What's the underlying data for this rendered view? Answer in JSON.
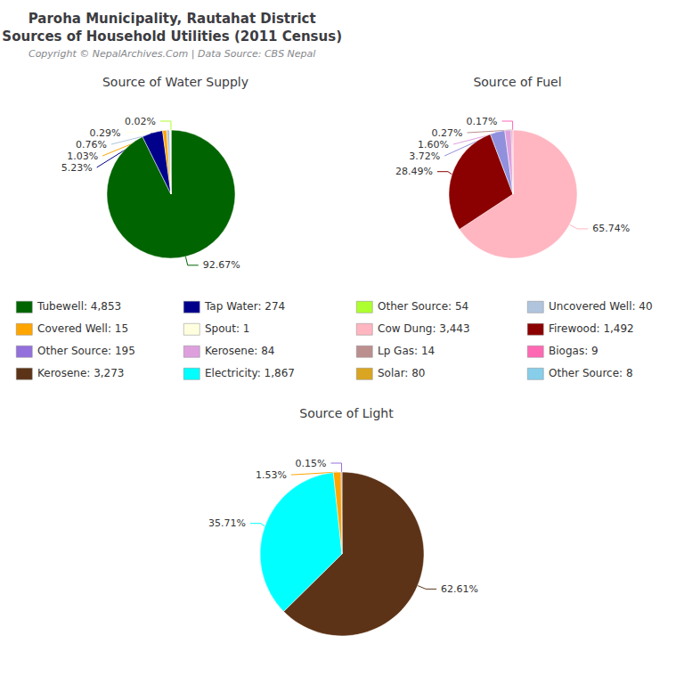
{
  "title": "Paroha Municipality, Rautahat District\nSources of Household Utilities (2011 Census)",
  "subtitle": "Copyright © NepalArchives.Com | Data Source: CBS Nepal",
  "legend_items": [
    {
      "name": "Tubewell: 4,853",
      "color": "#006400"
    },
    {
      "name": "Tap Water: 274",
      "color": "#00008B"
    },
    {
      "name": "Other Source: 54",
      "color": "#ADFF2F"
    },
    {
      "name": "Uncovered Well: 40",
      "color": "#B0C4DE"
    },
    {
      "name": "Covered Well: 15",
      "color": "#FFA500"
    },
    {
      "name": "Spout: 1",
      "color": "#FFFFE0"
    },
    {
      "name": "Cow Dung: 3,443",
      "color": "#FFB6C1"
    },
    {
      "name": "Firewood: 1,492",
      "color": "#8B0000"
    },
    {
      "name": "Other Source: 195",
      "color": "#9370DB"
    },
    {
      "name": "Kerosene: 84",
      "color": "#DDA0DD"
    },
    {
      "name": "Lp Gas: 14",
      "color": "#BC8F8F"
    },
    {
      "name": "Biogas: 9",
      "color": "#FF69B4"
    },
    {
      "name": "Kerosene: 3,273",
      "color": "#5C3317"
    },
    {
      "name": "Electricity: 1,867",
      "color": "#00FFFF"
    },
    {
      "name": "Solar: 80",
      "color": "#DAA520"
    },
    {
      "name": "Other Source: 8",
      "color": "#87CEEB"
    }
  ],
  "chart_data": [
    {
      "type": "pie",
      "title": "Source of Water Supply",
      "values": [
        92.67,
        5.23,
        1.03,
        0.76,
        0.29,
        0.02
      ],
      "value_labels": [
        "92.67%",
        "5.23%",
        "1.03%",
        "0.76%",
        "0.29%",
        "0.02%"
      ],
      "colors": [
        "#006400",
        "#00008B",
        "#FFA500",
        "#B0C4DE",
        "#FFFFE0",
        "#ADFF2F"
      ],
      "data_labels": true
    },
    {
      "type": "pie",
      "title": "Source of Fuel",
      "values": [
        65.74,
        28.49,
        3.72,
        1.6,
        0.27,
        0.17
      ],
      "value_labels": [
        "65.74%",
        "28.49%",
        "3.72%",
        "1.60%",
        "0.27%",
        "0.17%"
      ],
      "colors": [
        "#FFB6C1",
        "#8B0000",
        "#9090DD",
        "#DDA0DD",
        "#BC8F8F",
        "#FF69B4"
      ],
      "data_labels": true
    },
    {
      "type": "pie",
      "title": "Source of Light",
      "values": [
        62.61,
        35.71,
        1.53,
        0.15
      ],
      "value_labels": [
        "62.61%",
        "35.71%",
        "1.53%",
        "0.15%"
      ],
      "colors": [
        "#5C3317",
        "#00FFFF",
        "#FFA500",
        "#9370DB"
      ],
      "data_labels": true
    }
  ]
}
